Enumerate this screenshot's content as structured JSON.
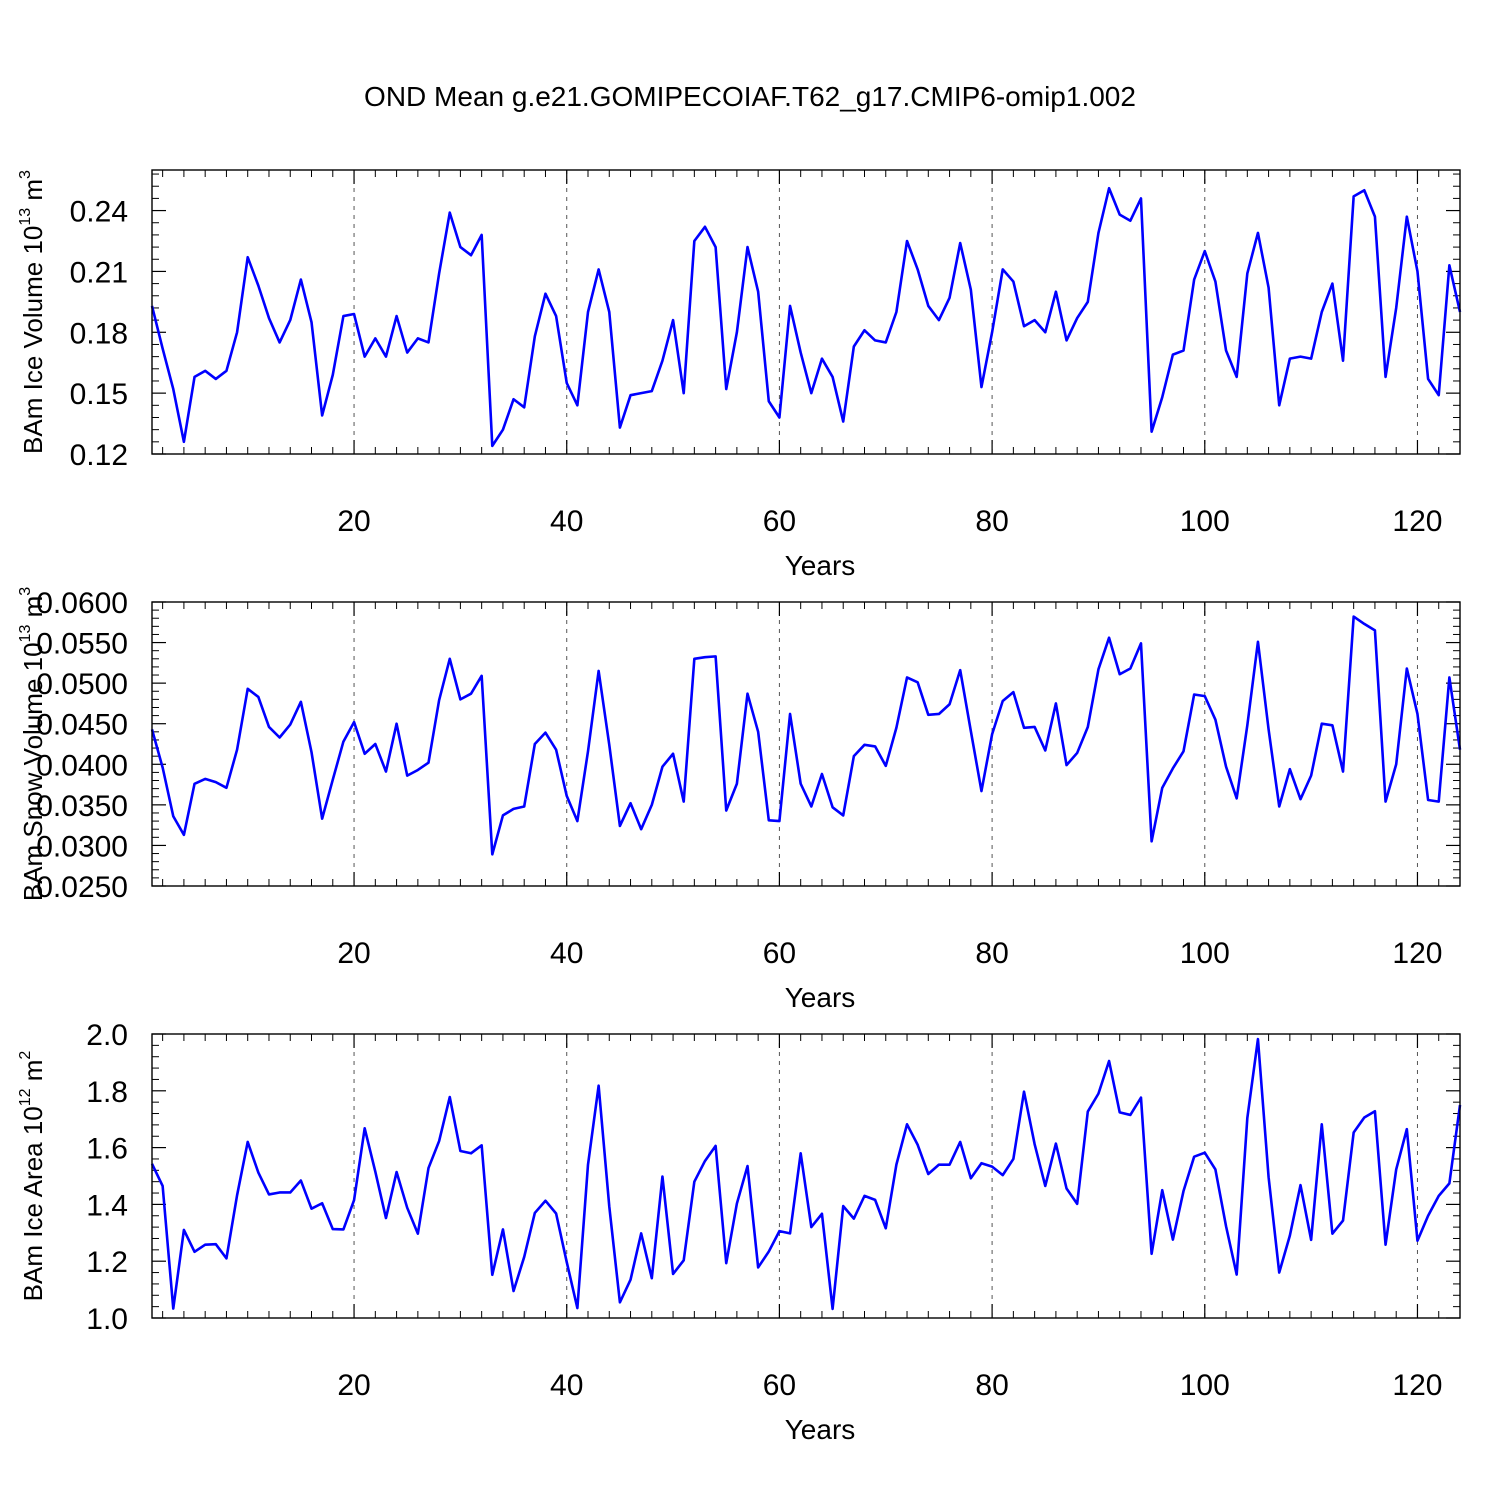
{
  "title": "OND Mean g.e21.GOMIPECOIAF.T62_g17.CMIP6-omip1.002",
  "chart_data": [
    {
      "type": "line",
      "xlabel": "Years",
      "ylabel_main": "BAm Ice Volume 10",
      "ylabel_exp": "13",
      "ylabel_unit": " m",
      "ylabel_unit_exp": "3",
      "xlim": [
        1,
        124
      ],
      "ylim": [
        0.12,
        0.26
      ],
      "xticks": [
        20,
        40,
        60,
        80,
        100,
        120
      ],
      "yticks": [
        0.12,
        0.15,
        0.18,
        0.21,
        0.24
      ],
      "ytick_labels": [
        "0.12",
        "0.15",
        "0.18",
        "0.21",
        "0.24"
      ],
      "grid_x": [
        20,
        40,
        60,
        80,
        100,
        120
      ],
      "line_color": "#0000ff",
      "x_start": 1,
      "values": [
        0.193,
        0.172,
        0.152,
        0.126,
        0.158,
        0.161,
        0.157,
        0.161,
        0.18,
        0.217,
        0.203,
        0.187,
        0.175,
        0.186,
        0.206,
        0.185,
        0.139,
        0.159,
        0.188,
        0.189,
        0.168,
        0.177,
        0.168,
        0.188,
        0.17,
        0.177,
        0.175,
        0.209,
        0.239,
        0.222,
        0.218,
        0.228,
        0.124,
        0.132,
        0.147,
        0.143,
        0.178,
        0.199,
        0.188,
        0.155,
        0.144,
        0.19,
        0.211,
        0.19,
        0.133,
        0.149,
        0.15,
        0.151,
        0.166,
        0.186,
        0.15,
        0.225,
        0.232,
        0.222,
        0.152,
        0.18,
        0.222,
        0.2,
        0.146,
        0.138,
        0.193,
        0.17,
        0.15,
        0.167,
        0.158,
        0.136,
        0.173,
        0.181,
        0.176,
        0.175,
        0.19,
        0.225,
        0.211,
        0.193,
        0.186,
        0.197,
        0.224,
        0.201,
        0.153,
        0.18,
        0.211,
        0.205,
        0.183,
        0.186,
        0.18,
        0.2,
        0.176,
        0.187,
        0.195,
        0.229,
        0.251,
        0.238,
        0.235,
        0.246,
        0.131,
        0.148,
        0.169,
        0.171,
        0.206,
        0.22,
        0.205,
        0.171,
        0.158,
        0.209,
        0.229,
        0.202,
        0.144,
        0.167,
        0.168,
        0.167,
        0.19,
        0.204,
        0.166,
        0.247,
        0.25,
        0.237,
        0.158,
        0.192,
        0.237,
        0.21,
        0.157,
        0.149,
        0.213,
        0.19
      ]
    },
    {
      "type": "line",
      "xlabel": "Years",
      "ylabel_main": "BAm Snow Volume 10",
      "ylabel_exp": "13",
      "ylabel_unit": " m",
      "ylabel_unit_exp": "3",
      "xlim": [
        1,
        124
      ],
      "ylim": [
        0.025,
        0.06
      ],
      "xticks": [
        20,
        40,
        60,
        80,
        100,
        120
      ],
      "yticks": [
        0.025,
        0.03,
        0.035,
        0.04,
        0.045,
        0.05,
        0.055,
        0.06
      ],
      "ytick_labels": [
        "0.0250",
        "0.0300",
        "0.0350",
        "0.0400",
        "0.0450",
        "0.0500",
        "0.0550",
        "0.0600"
      ],
      "grid_x": [
        20,
        40,
        60,
        80,
        100,
        120
      ],
      "line_color": "#0000ff",
      "x_start": 1,
      "values": [
        0.0443,
        0.0396,
        0.0336,
        0.0313,
        0.0376,
        0.0382,
        0.0378,
        0.0371,
        0.0418,
        0.0493,
        0.0483,
        0.0446,
        0.0433,
        0.0449,
        0.0477,
        0.0415,
        0.0333,
        0.0381,
        0.0428,
        0.0452,
        0.0413,
        0.0425,
        0.0391,
        0.045,
        0.0386,
        0.0393,
        0.0402,
        0.0479,
        0.053,
        0.048,
        0.0487,
        0.0509,
        0.0289,
        0.0337,
        0.0345,
        0.0348,
        0.0425,
        0.0439,
        0.0418,
        0.0361,
        0.033,
        0.0416,
        0.0515,
        0.0424,
        0.0324,
        0.0352,
        0.032,
        0.035,
        0.0397,
        0.0413,
        0.0354,
        0.053,
        0.0532,
        0.0533,
        0.0343,
        0.0376,
        0.0487,
        0.044,
        0.0331,
        0.033,
        0.0462,
        0.0376,
        0.0348,
        0.0388,
        0.0347,
        0.0337,
        0.041,
        0.0424,
        0.0422,
        0.0398,
        0.0445,
        0.0507,
        0.0501,
        0.0461,
        0.0462,
        0.0474,
        0.0516,
        0.0441,
        0.0367,
        0.0437,
        0.0478,
        0.0489,
        0.0445,
        0.0446,
        0.0417,
        0.0475,
        0.0399,
        0.0414,
        0.0446,
        0.0517,
        0.0556,
        0.0511,
        0.0518,
        0.0549,
        0.0305,
        0.0371,
        0.0395,
        0.0416,
        0.0486,
        0.0484,
        0.0455,
        0.0397,
        0.0358,
        0.0448,
        0.0551,
        0.0443,
        0.0348,
        0.0394,
        0.0357,
        0.0386,
        0.045,
        0.0448,
        0.0391,
        0.0582,
        0.0573,
        0.0565,
        0.0354,
        0.04,
        0.0518,
        0.0462,
        0.0356,
        0.0354,
        0.0507,
        0.0418
      ]
    },
    {
      "type": "line",
      "xlabel": "Years",
      "ylabel_main": "BAm Ice Area 10",
      "ylabel_exp": "12",
      "ylabel_unit": " m",
      "ylabel_unit_exp": "2",
      "xlim": [
        1,
        124
      ],
      "ylim": [
        1.0,
        2.0
      ],
      "xticks": [
        20,
        40,
        60,
        80,
        100,
        120
      ],
      "yticks": [
        1.0,
        1.2,
        1.4,
        1.6,
        1.8,
        2.0
      ],
      "ytick_labels": [
        "1.0",
        "1.2",
        "1.4",
        "1.6",
        "1.8",
        "2.0"
      ],
      "grid_x": [
        20,
        40,
        60,
        80,
        100,
        120
      ],
      "line_color": "#0000ff",
      "x_start": 1,
      "values": [
        1.543,
        1.465,
        1.033,
        1.31,
        1.233,
        1.258,
        1.26,
        1.21,
        1.432,
        1.62,
        1.512,
        1.435,
        1.442,
        1.442,
        1.484,
        1.385,
        1.404,
        1.313,
        1.312,
        1.415,
        1.668,
        1.515,
        1.352,
        1.514,
        1.388,
        1.297,
        1.528,
        1.623,
        1.778,
        1.588,
        1.58,
        1.608,
        1.152,
        1.312,
        1.095,
        1.215,
        1.37,
        1.413,
        1.368,
        1.197,
        1.035,
        1.54,
        1.818,
        1.393,
        1.055,
        1.135,
        1.298,
        1.14,
        1.498,
        1.155,
        1.203,
        1.48,
        1.553,
        1.606,
        1.193,
        1.403,
        1.535,
        1.178,
        1.234,
        1.306,
        1.298,
        1.58,
        1.32,
        1.367,
        1.032,
        1.394,
        1.35,
        1.43,
        1.416,
        1.316,
        1.54,
        1.682,
        1.61,
        1.507,
        1.54,
        1.54,
        1.62,
        1.492,
        1.545,
        1.533,
        1.503,
        1.56,
        1.797,
        1.612,
        1.465,
        1.614,
        1.456,
        1.402,
        1.727,
        1.79,
        1.905,
        1.724,
        1.715,
        1.776,
        1.226,
        1.45,
        1.276,
        1.447,
        1.568,
        1.582,
        1.523,
        1.323,
        1.153,
        1.704,
        1.982,
        1.496,
        1.16,
        1.29,
        1.468,
        1.275,
        1.682,
        1.297,
        1.343,
        1.653,
        1.706,
        1.728,
        1.258,
        1.523,
        1.665,
        1.272,
        1.36,
        1.43,
        1.474,
        1.75
      ]
    }
  ]
}
